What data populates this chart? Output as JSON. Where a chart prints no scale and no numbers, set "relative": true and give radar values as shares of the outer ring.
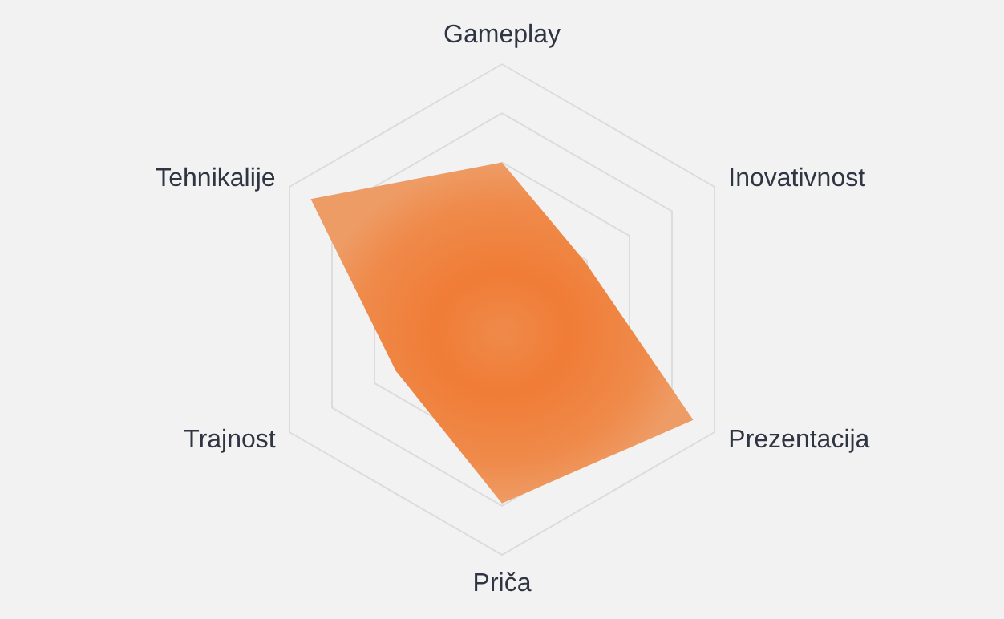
{
  "chart_data": {
    "type": "radar",
    "relative": true,
    "categories": [
      "Gameplay",
      "Inovativnost",
      "Prezentacija",
      "Priča",
      "Trajnost",
      "Tehnikalije"
    ],
    "series": [
      {
        "color": "#ef8a4a",
        "values": [
          0.6,
          0.39,
          0.9,
          0.79,
          0.5,
          0.9
        ]
      }
    ],
    "marker": "none"
  }
}
